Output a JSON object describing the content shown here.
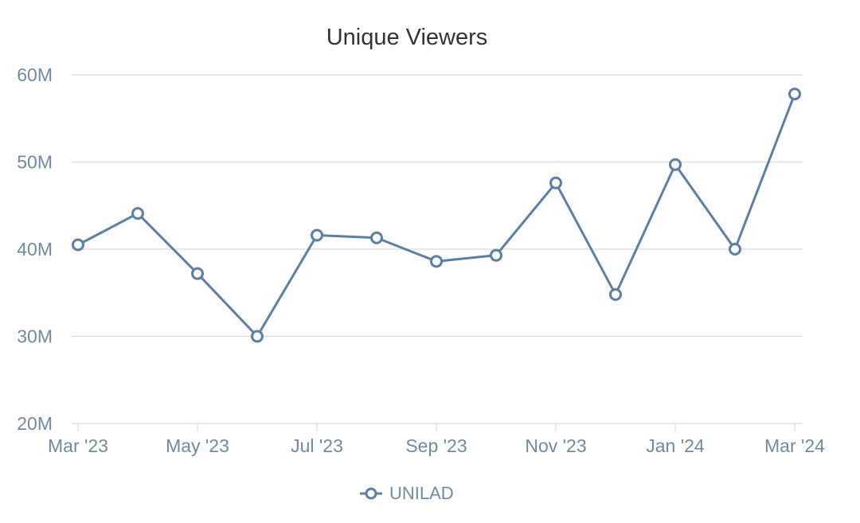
{
  "chart_data": {
    "type": "line",
    "title": "Unique Viewers",
    "xlabel": "",
    "ylabel": "",
    "x": [
      "Mar '23",
      "Apr '23",
      "May '23",
      "Jun '23",
      "Jul '23",
      "Aug '23",
      "Sep '23",
      "Oct '23",
      "Nov '23",
      "Dec '23",
      "Jan '24",
      "Feb '24",
      "Mar '24"
    ],
    "x_tick_labels": [
      "Mar '23",
      "May '23",
      "Jul '23",
      "Sep '23",
      "Nov '23",
      "Jan '24",
      "Mar '24"
    ],
    "ylim": [
      20000000,
      60000000
    ],
    "y_ticks": [
      20000000,
      30000000,
      40000000,
      50000000,
      60000000
    ],
    "y_tick_labels": [
      "20M",
      "30M",
      "40M",
      "50M",
      "60M"
    ],
    "grid": true,
    "legend": "bottom-center",
    "series": [
      {
        "name": "UNILAD",
        "color": "#5b7fa6",
        "values": [
          40500000,
          44100000,
          37200000,
          30000000,
          41600000,
          41300000,
          38600000,
          39300000,
          47600000,
          34800000,
          49700000,
          40000000,
          57800000
        ]
      }
    ],
    "colors": {
      "grid": "#d5dce3",
      "axis_text": "#6f8aa1",
      "marker_fill": "#ffffff"
    }
  }
}
